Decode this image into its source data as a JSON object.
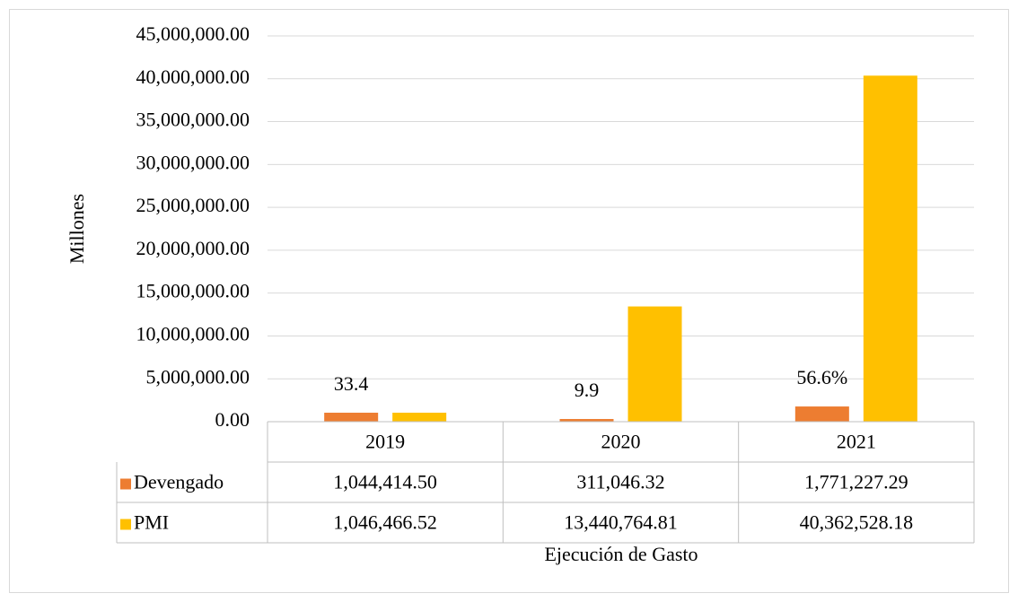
{
  "chart_data": {
    "type": "bar",
    "categories": [
      "2019",
      "2020",
      "2021"
    ],
    "series": [
      {
        "name": "Devengado",
        "color": "#ed7d31",
        "values": [
          1044414.5,
          311046.32,
          1771227.29
        ],
        "value_labels": [
          "1,044,414.50",
          "311,046.32",
          "1,771,227.29"
        ]
      },
      {
        "name": "PMI",
        "color": "#ffc000",
        "values": [
          1046466.52,
          13440764.81,
          40362528.18
        ],
        "value_labels": [
          "1,046,466.52",
          "13,440,764.81",
          "40,362,528.18"
        ]
      }
    ],
    "annotations": [
      "33.4",
      "9.9",
      "56.6%"
    ],
    "ylabel": "Millones",
    "xlabel": "Ejecución de Gasto",
    "ylim": [
      0,
      45000000
    ],
    "yticks": [
      {
        "value": 0,
        "label": "0.00"
      },
      {
        "value": 5000000,
        "label": "5,000,000.00"
      },
      {
        "value": 10000000,
        "label": "10,000,000.00"
      },
      {
        "value": 15000000,
        "label": "15,000,000.00"
      },
      {
        "value": 20000000,
        "label": "20,000,000.00"
      },
      {
        "value": 25000000,
        "label": "25,000,000.00"
      },
      {
        "value": 30000000,
        "label": "30,000,000.00"
      },
      {
        "value": 35000000,
        "label": "35,000,000.00"
      },
      {
        "value": 40000000,
        "label": "40,000,000.00"
      },
      {
        "value": 45000000,
        "label": "45,000,000.00"
      }
    ],
    "grid": true,
    "data_table": true
  }
}
